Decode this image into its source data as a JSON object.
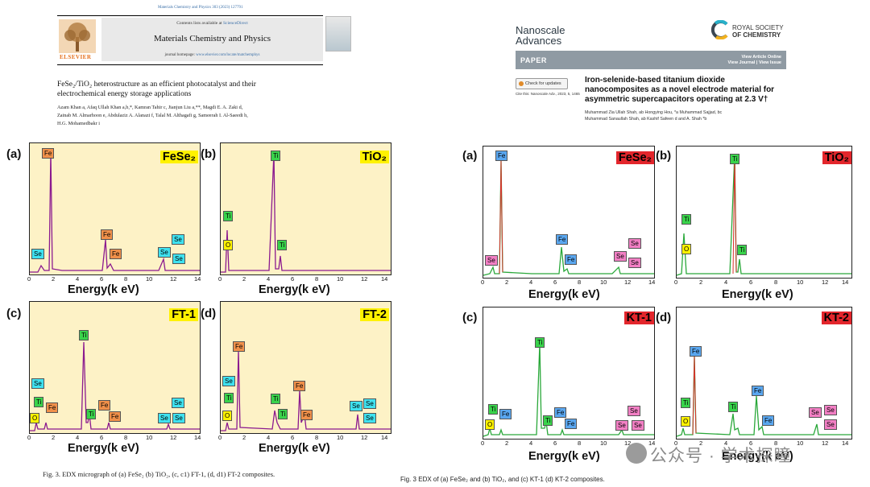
{
  "left": {
    "citation": "Materials Chemistry and Physics 303 (2023) 127791",
    "contents_prefix": "Contents lists available at ",
    "contents_link": "ScienceDirect",
    "publisher": "ELSEVIER",
    "journal": "Materials Chemistry and Physics",
    "homepage_prefix": "journal homepage: ",
    "homepage_url": "www.elsevier.com/locate/matchemphys",
    "title_line1": "FeSe₂/TiO₂ heterostructure as an efficient photocatalyst and their",
    "title_line2": "electrochemical energy storage applications",
    "authors_line1": "Azam Khan a, Afaq Ullah Khan a,b,*, Kamran Tahir c, Jianjun Liu a,**, Magdi E. A. Zaki d,",
    "authors_line2": "Zainab M. Almarhoon e, Abdulaziz A. Alanazi f, Talal M. Althagafi g, Sameerah I. Al-Saeedi h,",
    "authors_line3": "H.G. Mohamedbakr i",
    "caption": "Fig. 3.  EDX micrograph of (a) FeSe₂ (b) TiO₂, (c, c1) FT-1, (d, d1) FT-2 composites."
  },
  "right": {
    "journal_line1": "Nanoscale",
    "journal_line2": "Advances",
    "society_line1": "ROYAL SOCIETY",
    "society_line2": "OF CHEMISTRY",
    "paper_label": "PAPER",
    "view_online": "View Article Online",
    "view_journal": "View Journal | View Issue",
    "check_updates": "Check for updates",
    "cite_this": "Cite this: Nanoscale Adv., 2023, 5, 1465",
    "title_line1": "Iron-selenide-based titanium dioxide",
    "title_line2": "nanocomposites as a novel electrode material for",
    "title_line3": "asymmetric supercapacitors operating at 2.3 V†",
    "authors_line1": "Muhammad Zia Ullah Shah, ab Hongying Hou, *a Muhammad Sajjad, bc",
    "authors_line2": "Muhammad Sanaullah Shah, ab Kashif Safeen d and A. Shah *b",
    "caption": "Fig. 3   EDX of (a) FeSe₂ and (b) TiO₂, and (c) KT-1 (d) KT-2 composites.",
    "watermark": "公众号 · 学术探瞳"
  },
  "axis": {
    "xlabel": "Energy(k eV)",
    "ticks": [
      "0",
      "2",
      "4",
      "6",
      "8",
      "10",
      "12",
      "14"
    ]
  },
  "panels_left": [
    {
      "letter": "(a)",
      "name": "FeSe₂",
      "peaks": [
        {
          "el": "Se",
          "c": "se-c"
        },
        {
          "el": "Fe",
          "c": "fe-o"
        },
        {
          "el": "Fe",
          "c": "fe-o"
        },
        {
          "el": "Fe",
          "c": "fe-o"
        },
        {
          "el": "Se",
          "c": "se-c"
        },
        {
          "el": "Se",
          "c": "se-c"
        },
        {
          "el": "Se",
          "c": "se-c"
        }
      ]
    },
    {
      "letter": "(b)",
      "name": "TiO₂",
      "peaks": [
        {
          "el": "Ti",
          "c": "ti-g"
        },
        {
          "el": "O",
          "c": "o-y"
        },
        {
          "el": "Ti",
          "c": "ti-g"
        },
        {
          "el": "Ti",
          "c": "ti-g"
        }
      ]
    },
    {
      "letter": "(c)",
      "name": "FT-1",
      "peaks": [
        {
          "el": "Se",
          "c": "se-c"
        },
        {
          "el": "Ti",
          "c": "ti-g"
        },
        {
          "el": "O",
          "c": "o-y"
        },
        {
          "el": "Fe",
          "c": "fe-o"
        },
        {
          "el": "Ti",
          "c": "ti-g"
        },
        {
          "el": "Ti",
          "c": "ti-g"
        },
        {
          "el": "Fe",
          "c": "fe-o"
        },
        {
          "el": "Fe",
          "c": "fe-o"
        },
        {
          "el": "Se",
          "c": "se-c"
        },
        {
          "el": "Se",
          "c": "se-c"
        },
        {
          "el": "Se",
          "c": "se-c"
        }
      ]
    },
    {
      "letter": "(d)",
      "name": "FT-2",
      "peaks": [
        {
          "el": "Fe",
          "c": "fe-o"
        },
        {
          "el": "Se",
          "c": "se-c"
        },
        {
          "el": "Ti",
          "c": "ti-g"
        },
        {
          "el": "O",
          "c": "o-y"
        },
        {
          "el": "Ti",
          "c": "ti-g"
        },
        {
          "el": "Ti",
          "c": "ti-g"
        },
        {
          "el": "Fe",
          "c": "fe-o"
        },
        {
          "el": "Fe",
          "c": "fe-o"
        },
        {
          "el": "Se",
          "c": "se-c"
        },
        {
          "el": "Se",
          "c": "se-c"
        },
        {
          "el": "Se",
          "c": "se-c"
        }
      ]
    }
  ],
  "panels_right": [
    {
      "letter": "(a)",
      "name": "FeSe₂",
      "peaks": [
        {
          "el": "Fe",
          "c": "fe-b"
        },
        {
          "el": "Se",
          "c": "se-p"
        },
        {
          "el": "Fe",
          "c": "fe-b"
        },
        {
          "el": "Fe",
          "c": "fe-b"
        },
        {
          "el": "Se",
          "c": "se-p"
        },
        {
          "el": "Se",
          "c": "se-p"
        },
        {
          "el": "Se",
          "c": "se-p"
        }
      ]
    },
    {
      "letter": "(b)",
      "name": "TiO₂",
      "peaks": [
        {
          "el": "Ti",
          "c": "ti-g"
        },
        {
          "el": "Ti",
          "c": "ti-g"
        },
        {
          "el": "O",
          "c": "o-y"
        },
        {
          "el": "Ti",
          "c": "ti-g"
        }
      ]
    },
    {
      "letter": "(c)",
      "name": "KT-1",
      "peaks": [
        {
          "el": "Ti",
          "c": "ti-g"
        },
        {
          "el": "Ti",
          "c": "ti-g"
        },
        {
          "el": "O",
          "c": "o-y"
        },
        {
          "el": "Fe",
          "c": "fe-b"
        },
        {
          "el": "Ti",
          "c": "ti-g"
        },
        {
          "el": "Fe",
          "c": "fe-b"
        },
        {
          "el": "Fe",
          "c": "fe-b"
        },
        {
          "el": "Se",
          "c": "se-p"
        },
        {
          "el": "Se",
          "c": "se-p"
        },
        {
          "el": "Se",
          "c": "se-p"
        }
      ]
    },
    {
      "letter": "(d)",
      "name": "KT-2",
      "peaks": [
        {
          "el": "Fe",
          "c": "fe-b"
        },
        {
          "el": "Ti",
          "c": "ti-g"
        },
        {
          "el": "O",
          "c": "o-y"
        },
        {
          "el": "Ti",
          "c": "ti-g"
        },
        {
          "el": "Fe",
          "c": "fe-b"
        },
        {
          "el": "Fe",
          "c": "fe-b"
        },
        {
          "el": "Se",
          "c": "se-p"
        },
        {
          "el": "Se",
          "c": "se-p"
        },
        {
          "el": "Se",
          "c": "se-p"
        }
      ]
    }
  ],
  "colors": {
    "left_spectrum": "#8b1a8f",
    "right_spectrum_main": "#2aa83a",
    "right_spectrum_accent": "#d8322b",
    "left_bg": "#fdf2c6"
  }
}
